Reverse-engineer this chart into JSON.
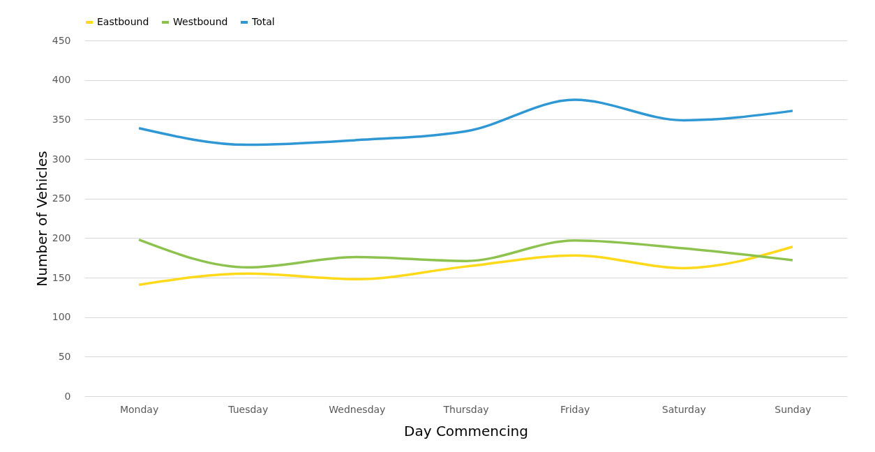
{
  "chart_data": {
    "type": "line",
    "xlabel": "Day Commencing",
    "ylabel": "Number of Vehicles",
    "categories": [
      "Monday",
      "Tuesday",
      "Wednesday",
      "Thursday",
      "Friday",
      "Saturday",
      "Sunday"
    ],
    "series": [
      {
        "name": "Eastbound",
        "color": "#ffd91a",
        "values": [
          141,
          155,
          148,
          164,
          178,
          162,
          189
        ]
      },
      {
        "name": "Westbound",
        "color": "#8dc24e",
        "values": [
          198,
          163,
          176,
          171,
          197,
          187,
          172
        ]
      },
      {
        "name": "Total",
        "color": "#2e97d4",
        "values": [
          339,
          318,
          324,
          335,
          375,
          349,
          361
        ]
      }
    ],
    "ylim": [
      0,
      450
    ],
    "yticks": [
      0,
      50,
      100,
      150,
      200,
      250,
      300,
      350,
      400,
      450
    ],
    "grid": "y",
    "legend": "top",
    "marker": "none",
    "line_style": "solid"
  }
}
